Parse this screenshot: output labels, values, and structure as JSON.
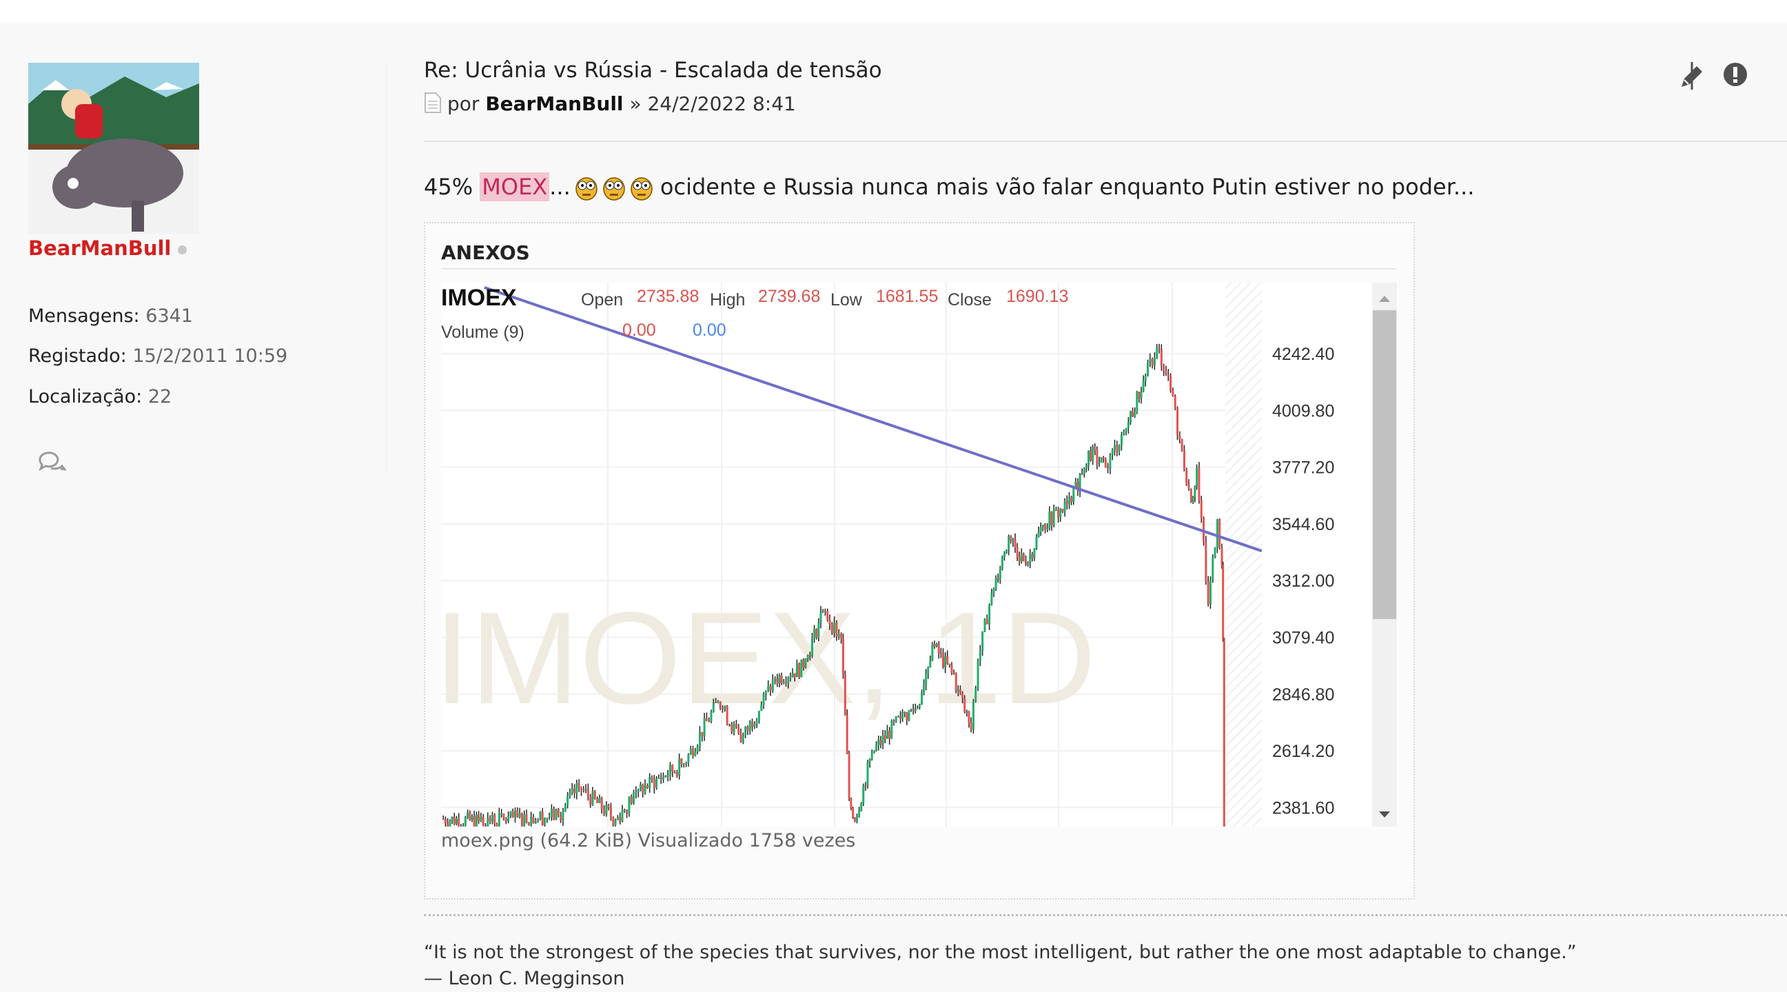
{
  "user": {
    "name": "BearManBull",
    "status": "offline",
    "stats": [
      {
        "label": "Mensagens:",
        "value": "6341"
      },
      {
        "label": "Registado:",
        "value": "15/2/2011 10:59"
      },
      {
        "label": "Localização:",
        "value": "22"
      }
    ]
  },
  "post": {
    "title": "Re: Ucrânia vs Rússia - Escalada de tensão",
    "by_prefix": "por",
    "author": "BearManBull",
    "separator": "»",
    "date": "24/2/2022 8:41",
    "body_prefix": "45%",
    "highlight": "MOEX",
    "ellipsis": "...",
    "emoji": "eyes-wide-emoji x3",
    "body_text": "ocidente e Russia nunca mais vão falar enquanto Putin estiver no poder...",
    "actions": [
      {
        "icon": "pencil-icon",
        "name": "edit"
      },
      {
        "icon": "exclamation-circle-icon",
        "name": "report"
      }
    ]
  },
  "attachments": {
    "heading": "ANEXOS",
    "caption": "moex.png (64.2 KiB) Visualizado 1758 vezes"
  },
  "signature": {
    "quote": "“It is not the strongest of the species that survives, nor the most intelligent, but rather the one most adaptable to change.”",
    "author": "— Leon C. Megginson"
  },
  "chart_data": {
    "type": "candlestick",
    "symbol": "IMOEX",
    "watermark": "IMOEX, 1D",
    "legend": {
      "open_label": "Open",
      "open": "2735.88",
      "high_label": "High",
      "high": "2739.68",
      "low_label": "Low",
      "low": "1681.55",
      "close_label": "Close",
      "close": "1690.13",
      "volume_label": "Volume (9)",
      "volume_a": "0.00",
      "volume_b": "0.00"
    },
    "y_ticks": [
      "4242.40",
      "4009.80",
      "3777.20",
      "3544.60",
      "3312.00",
      "3079.40",
      "2846.80",
      "2614.20",
      "2381.60"
    ],
    "ylim": [
      2300,
      4520
    ],
    "grid": true,
    "colors": {
      "up": "#1fae6b",
      "down": "#e5524f",
      "trendline": "#6f6fc7",
      "legend_value": "#d9534f",
      "volume_b": "#4a86e8",
      "watermark": "#efebe0"
    },
    "close_path": [
      [
        0,
        2335
      ],
      [
        33,
        2325
      ],
      [
        103,
        2349
      ],
      [
        121,
        2466
      ],
      [
        153,
        2330
      ],
      [
        173,
        2450
      ],
      [
        213,
        2560
      ],
      [
        243,
        2816
      ],
      [
        263,
        2653
      ],
      [
        293,
        2910
      ],
      [
        318,
        2957
      ],
      [
        335,
        3190
      ],
      [
        351,
        3074
      ],
      [
        358,
        2419
      ],
      [
        363,
        2325
      ],
      [
        378,
        2606
      ],
      [
        403,
        2746
      ],
      [
        418,
        2793
      ],
      [
        431,
        3050
      ],
      [
        448,
        2933
      ],
      [
        465,
        2700
      ],
      [
        471,
        2980
      ],
      [
        483,
        3260
      ],
      [
        498,
        3494
      ],
      [
        513,
        3377
      ],
      [
        528,
        3541
      ],
      [
        553,
        3634
      ],
      [
        568,
        3845
      ],
      [
        583,
        3775
      ],
      [
        603,
        3962
      ],
      [
        618,
        4149
      ],
      [
        628,
        4266
      ],
      [
        638,
        4149
      ],
      [
        648,
        3892
      ],
      [
        658,
        3634
      ],
      [
        663,
        3775
      ],
      [
        673,
        3214
      ],
      [
        681,
        3564
      ],
      [
        685,
        3377
      ],
      [
        686,
        3074
      ],
      [
        687,
        1690
      ]
    ],
    "trendline": {
      "from": [
        38,
        4513.6
      ],
      "to": [
        720,
        3433.6
      ]
    }
  }
}
